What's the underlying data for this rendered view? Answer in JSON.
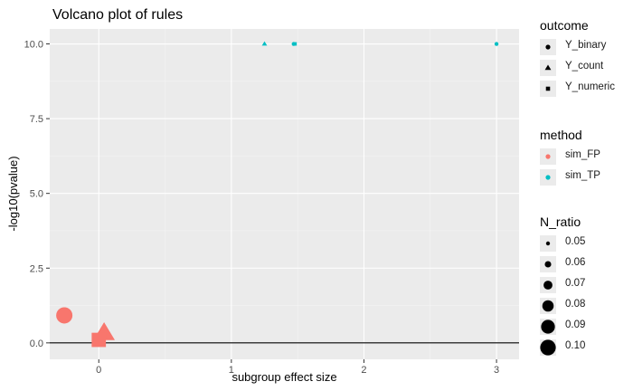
{
  "chart_data": {
    "type": "scatter",
    "title": "Volcano plot of rules",
    "xlabel": "subgroup effect size",
    "ylabel": "-log10(pvalue)",
    "xlim": [
      -0.37,
      3.17
    ],
    "ylim": [
      -0.55,
      10.5
    ],
    "x_ticks": [
      0,
      1,
      2,
      3
    ],
    "x_tick_labels": [
      "0",
      "1",
      "2",
      "3"
    ],
    "y_ticks": [
      0.0,
      2.5,
      5.0,
      7.5,
      10.0
    ],
    "y_tick_labels": [
      "0.0",
      "2.5",
      "5.0",
      "7.5",
      "10.0"
    ],
    "hline": 0,
    "grid": true,
    "legend_placement": "right",
    "points": [
      {
        "x": -0.26,
        "y": 0.92,
        "outcome": "Y_binary",
        "method": "sim_FP",
        "N_ratio": 0.1
      },
      {
        "x": 0.04,
        "y": 0.33,
        "outcome": "Y_count",
        "method": "sim_FP",
        "N_ratio": 0.1
      },
      {
        "x": 0.0,
        "y": 0.1,
        "outcome": "Y_numeric",
        "method": "sim_FP",
        "N_ratio": 0.1
      },
      {
        "x": 1.25,
        "y": 10.0,
        "outcome": "Y_count",
        "method": "sim_TP",
        "N_ratio": 0.05
      },
      {
        "x": 1.47,
        "y": 10.0,
        "outcome": "Y_binary",
        "method": "sim_TP",
        "N_ratio": 0.05
      },
      {
        "x": 1.48,
        "y": 10.0,
        "outcome": "Y_numeric",
        "method": "sim_TP",
        "N_ratio": 0.05
      },
      {
        "x": 3.0,
        "y": 10.0,
        "outcome": "Y_binary",
        "method": "sim_TP",
        "N_ratio": 0.05
      }
    ],
    "legends": {
      "outcome": {
        "title": "outcome",
        "items": [
          "Y_binary",
          "Y_count",
          "Y_numeric"
        ],
        "shapes": [
          "circle",
          "triangle",
          "square"
        ]
      },
      "method": {
        "title": "method",
        "items": [
          "sim_FP",
          "sim_TP"
        ],
        "colors": [
          "#F8766D",
          "#00BFC4"
        ]
      },
      "N_ratio": {
        "title": "N_ratio",
        "items": [
          "0.05",
          "0.06",
          "0.07",
          "0.08",
          "0.09",
          "0.10"
        ],
        "values": [
          0.05,
          0.06,
          0.07,
          0.08,
          0.09,
          0.1
        ]
      }
    },
    "colors": {
      "panel": "#ebebeb",
      "grid_major": "#ffffff",
      "grid_minor": "#f4f4f4",
      "hline": "#000000",
      "axis_text": "#4d4d4d"
    }
  }
}
